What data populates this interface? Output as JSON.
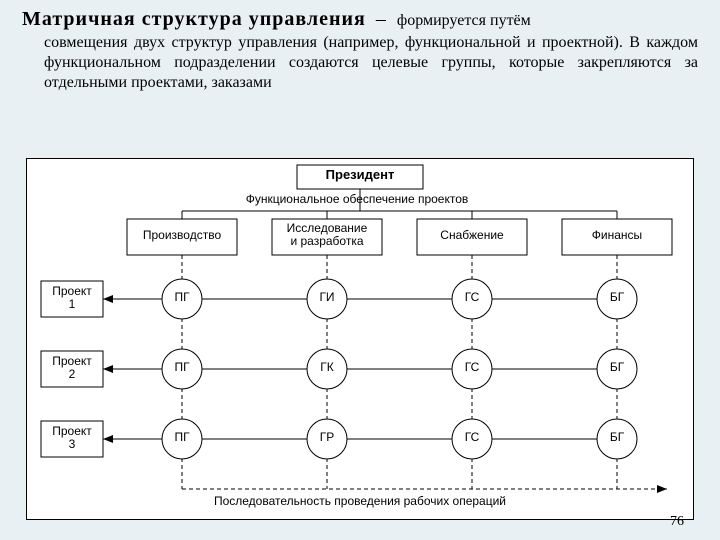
{
  "page_number": "76",
  "heading": "Матричная структура управления",
  "dash": "–",
  "tail": "формируется путём",
  "body": "совмещения двух структур управления (например, функциональной и проектной). В каждом функциональном подразделении создаются целевые группы, которые закрепляются за отдельными проектами, заказами",
  "diagram": {
    "president": "Президент",
    "subtitle": "Функциональное обеспечение проектов",
    "departments": [
      "Производство",
      "Исследование\nи разработка",
      "Снабжение",
      "Финансы"
    ],
    "projects": [
      "Проект\n1",
      "Проект\n2",
      "Проект\n3"
    ],
    "grid": [
      [
        "ПГ",
        "ГИ",
        "ГС",
        "БГ"
      ],
      [
        "ПГ",
        "ГК",
        "ГС",
        "БГ"
      ],
      [
        "ПГ",
        "ГР",
        "ГС",
        "БГ"
      ]
    ],
    "footer": "Последовательность проведения рабочих операций"
  },
  "colors": {
    "bg": "#e8f0f4",
    "diagram_bg": "#ffffff",
    "line": "#000000"
  }
}
